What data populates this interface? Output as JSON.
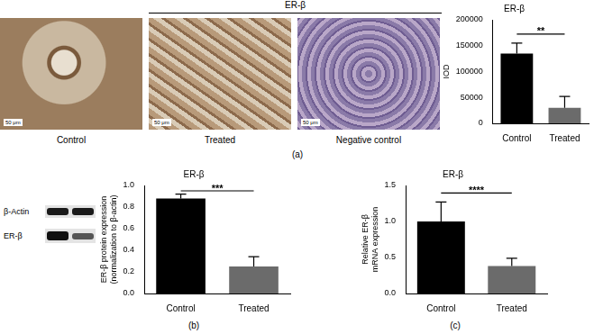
{
  "figure": {
    "header": "ER-β",
    "images": [
      {
        "label": "Control",
        "scale_bar": "50 μm"
      },
      {
        "label": "Treated",
        "scale_bar": "50 μm"
      },
      {
        "label": "Negative control",
        "scale_bar": "50 μm"
      }
    ],
    "blot": {
      "bands": [
        "β-Actin",
        "ER-β"
      ]
    },
    "panel_labels": [
      "(a)",
      "(b)",
      "(c)"
    ]
  },
  "chart_data": [
    {
      "type": "bar",
      "title": "ER-β",
      "y_label": [
        "IOD"
      ],
      "categories": [
        "Control",
        "Treated"
      ],
      "values": [
        135000,
        30000
      ],
      "errors": [
        20000,
        22000
      ],
      "colors": [
        "#000000",
        "#6b6b6b"
      ],
      "ylim": [
        0,
        200000
      ],
      "yticks": [
        0,
        50000,
        100000,
        150000,
        200000
      ],
      "grid": false,
      "annotations": [
        "**"
      ]
    },
    {
      "type": "bar",
      "title": "ER-β",
      "y_label": [
        "ER-β protein expression",
        "(normalization to β-actin)"
      ],
      "categories": [
        "Control",
        "Treated"
      ],
      "values": [
        0.88,
        0.25
      ],
      "errors": [
        0.04,
        0.09
      ],
      "colors": [
        "#000000",
        "#6b6b6b"
      ],
      "ylim": [
        0,
        1.0
      ],
      "yticks": [
        {
          "value": 0,
          "label": "0.0"
        },
        0.2,
        0.4,
        0.6,
        0.8,
        {
          "value": 1.0,
          "label": "1.0"
        }
      ],
      "grid": false,
      "annotations": [
        "***"
      ]
    },
    {
      "type": "bar",
      "title": "ER-β",
      "y_label": [
        "Relative ER-β",
        "mRNA expression"
      ],
      "categories": [
        "Control",
        "Treated"
      ],
      "values": [
        1.0,
        0.38
      ],
      "errors": [
        0.27,
        0.11
      ],
      "colors": [
        "#000000",
        "#6b6b6b"
      ],
      "ylim": [
        0,
        1.5
      ],
      "yticks": [
        {
          "value": 0,
          "label": "0.0"
        },
        0.5,
        {
          "value": 1.0,
          "label": "1.0"
        },
        1.5
      ],
      "grid": false,
      "annotations": [
        "****"
      ]
    }
  ]
}
